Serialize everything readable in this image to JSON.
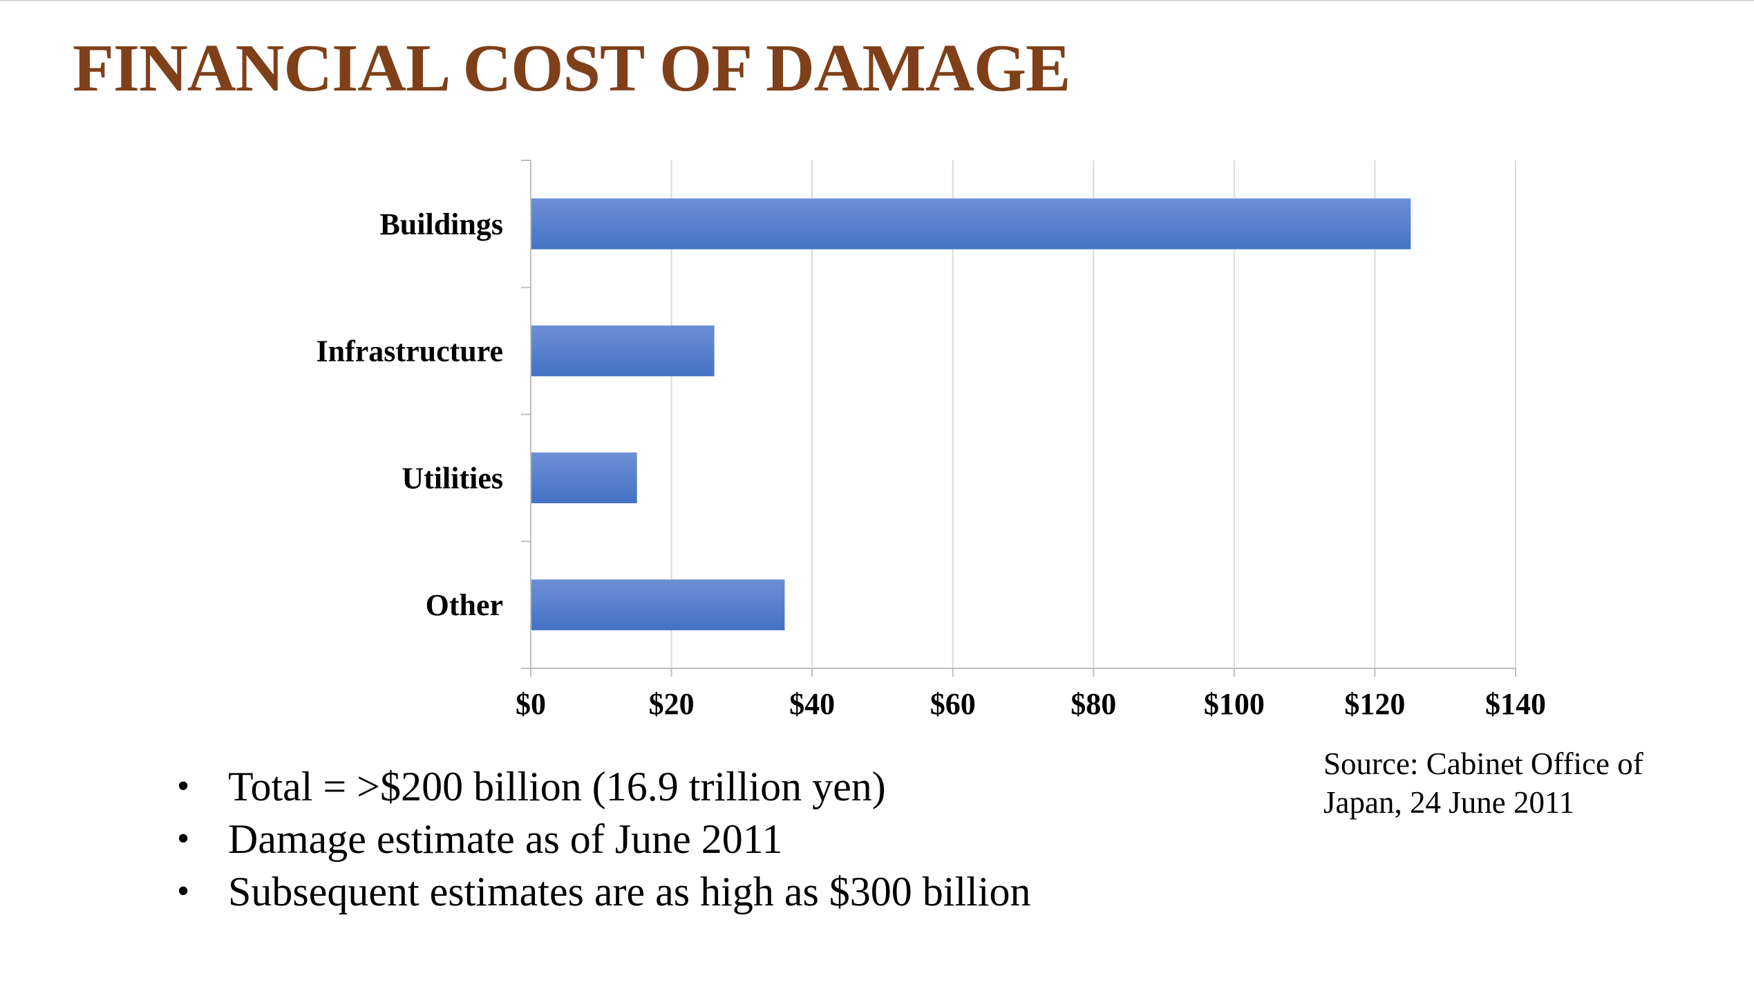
{
  "slide": {
    "title": "FINANCIAL COST OF DAMAGE",
    "bullets": [
      "Total = >$200 billion (16.9 trillion yen)",
      "Damage estimate as of June 2011",
      "Subsequent estimates are as high as $300 billion"
    ],
    "source_lines": [
      "Source: Cabinet Office of",
      "Japan, 24 June 2011"
    ]
  },
  "colors": {
    "title": "#7f4019",
    "bar": "#4472c4",
    "bar_light": "#6d8fd4",
    "gridline": "#d9d9d9"
  },
  "chart_data": {
    "type": "bar",
    "orientation": "horizontal",
    "categories": [
      "Buildings",
      "Infrastructure",
      "Utilities",
      "Other"
    ],
    "values": [
      125,
      26,
      15,
      36
    ],
    "tick_labels": [
      "$0",
      "$20",
      "$40",
      "$60",
      "$80",
      "$100",
      "$120",
      "$140"
    ],
    "xlim": [
      0,
      140
    ],
    "x_tick_step": 20,
    "grid": true,
    "legend": "none"
  }
}
